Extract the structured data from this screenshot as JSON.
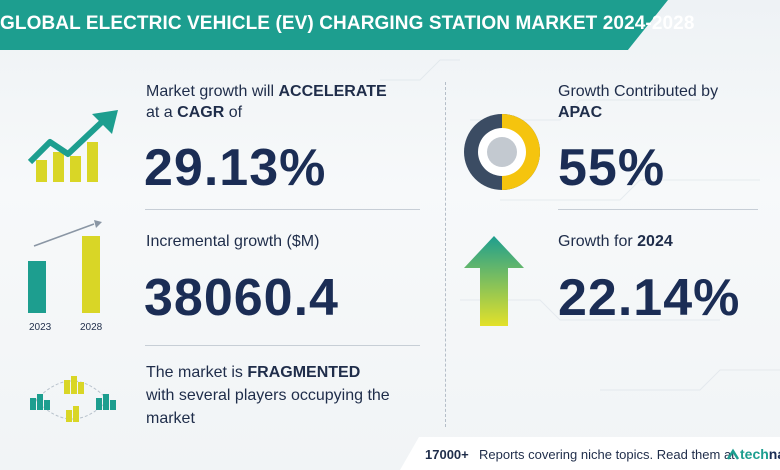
{
  "title": "GLOBAL ELECTRIC VEHICLE (EV) CHARGING STATION MARKET 2024-2028",
  "cagr": {
    "line1_prefix": "Market growth will ",
    "line1_bold": "ACCELERATE",
    "line2_prefix": "at a ",
    "line2_bold": "CAGR",
    "line2_suffix": " of",
    "value": "29.13%"
  },
  "incremental": {
    "label": "Incremental growth ($M)",
    "value": "38060.4",
    "year_start": "2023",
    "year_end": "2028"
  },
  "market": {
    "line1_prefix": "The market is ",
    "line1_bold": "FRAGMENTED",
    "line2": "with several players occupying the",
    "line3": "market"
  },
  "region": {
    "line1": "Growth Contributed by",
    "line2_bold": "APAC",
    "value": "55%"
  },
  "yoy": {
    "label_prefix": "Growth for ",
    "label_bold": "2024",
    "value": "22.14%"
  },
  "footer": {
    "count": "17000+",
    "text": "Reports covering niche topics. Read them at",
    "logo_part1": "tech",
    "logo_part2": "na"
  },
  "colors": {
    "teal": "#1d9e8f",
    "navy": "#1b2d55",
    "yellow": "#d9d626",
    "donut_yellow": "#f5c40e",
    "donut_dark": "#3b4c63"
  }
}
